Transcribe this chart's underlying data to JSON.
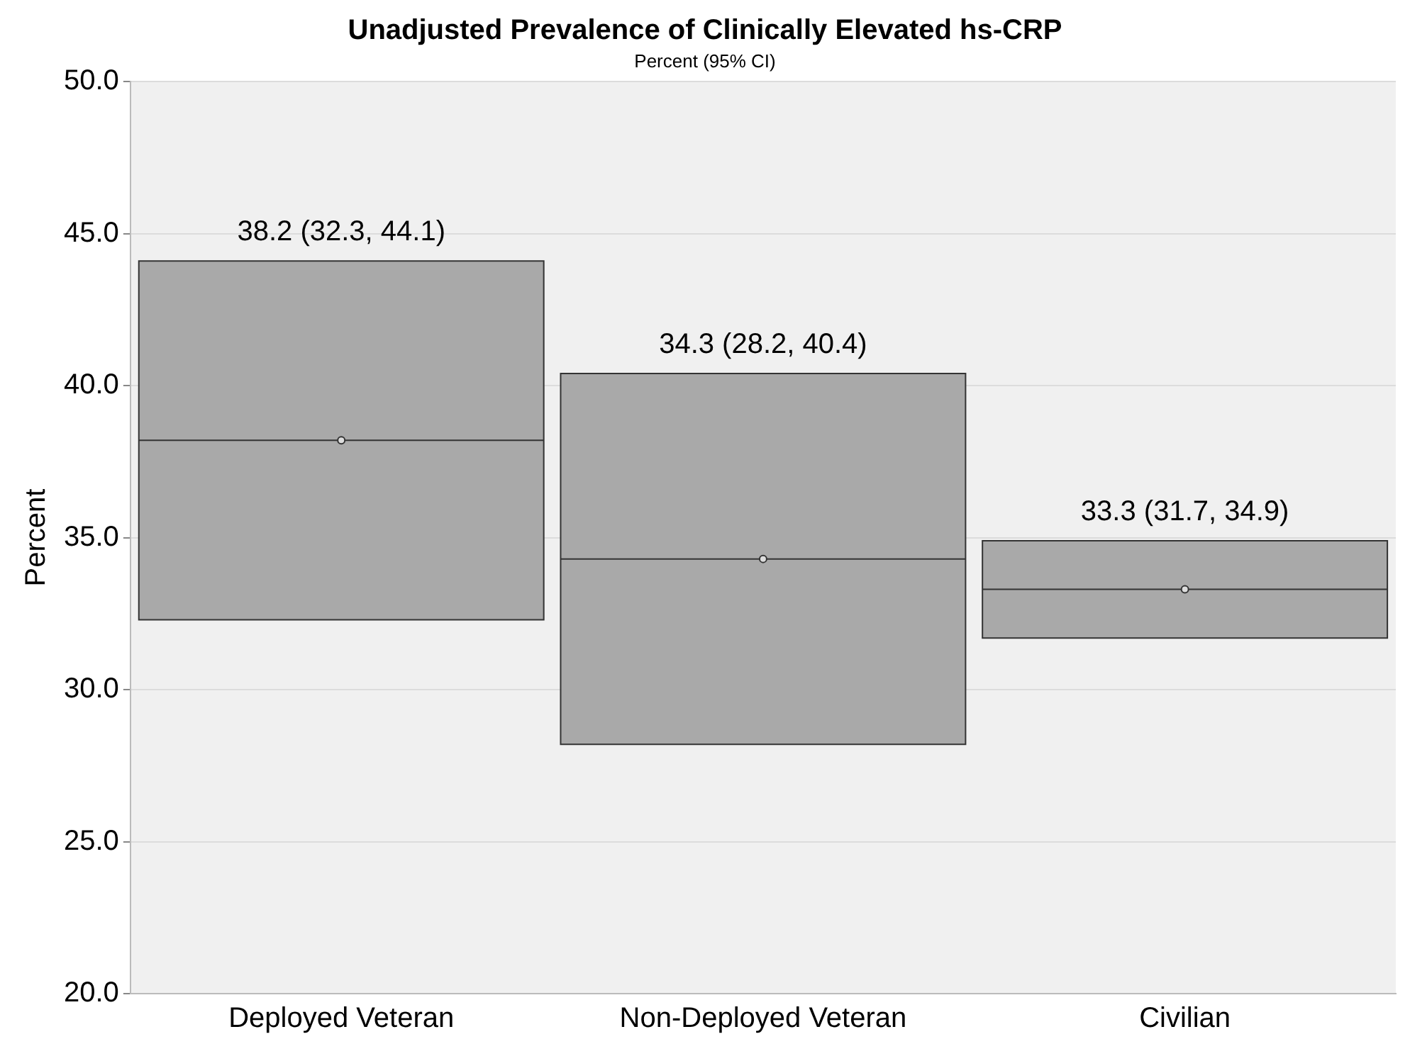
{
  "chart_data": {
    "type": "box",
    "title": "Unadjusted Prevalence of Clinically Elevated hs-CRP",
    "subtitle": "Percent (95% CI)",
    "ylabel": "Percent",
    "categories": [
      "Deployed Veteran",
      "Non-Deployed Veteran",
      "Civilian"
    ],
    "color": "#a9a9a9",
    "boxes": [
      {
        "low": 32.3,
        "q1": 32.3,
        "median": 38.2,
        "q3": 44.1,
        "high": 44.1,
        "mean": 38.2
      },
      {
        "low": 28.2,
        "q1": 28.2,
        "median": 34.3,
        "q3": 40.4,
        "high": 40.4,
        "mean": 34.3
      },
      {
        "low": 31.7,
        "q1": 31.7,
        "median": 33.3,
        "q3": 34.9,
        "high": 34.9,
        "mean": 33.3
      }
    ],
    "ylim": [
      20,
      50
    ],
    "yticks": [
      {
        "value": 20,
        "label": "20.0"
      },
      {
        "value": 25,
        "label": "25.0"
      },
      {
        "value": 30,
        "label": "30.0"
      },
      {
        "value": 35,
        "label": "35.0"
      },
      {
        "value": 40,
        "label": "40.0"
      },
      {
        "value": 45,
        "label": "45.0"
      },
      {
        "value": 50,
        "label": "50.0"
      }
    ],
    "grid": "y",
    "legend": false,
    "annotations": [
      {
        "text": "38.2 (32.3, 44.1)",
        "x": "Deployed Veteran",
        "y": 44.1
      },
      {
        "text": "34.3 (28.2, 40.4)",
        "x": "Non-Deployed Veteran",
        "y": 40.4
      },
      {
        "text": "33.3 (31.7, 34.9)",
        "x": "Civilian",
        "y": 34.9
      }
    ]
  }
}
